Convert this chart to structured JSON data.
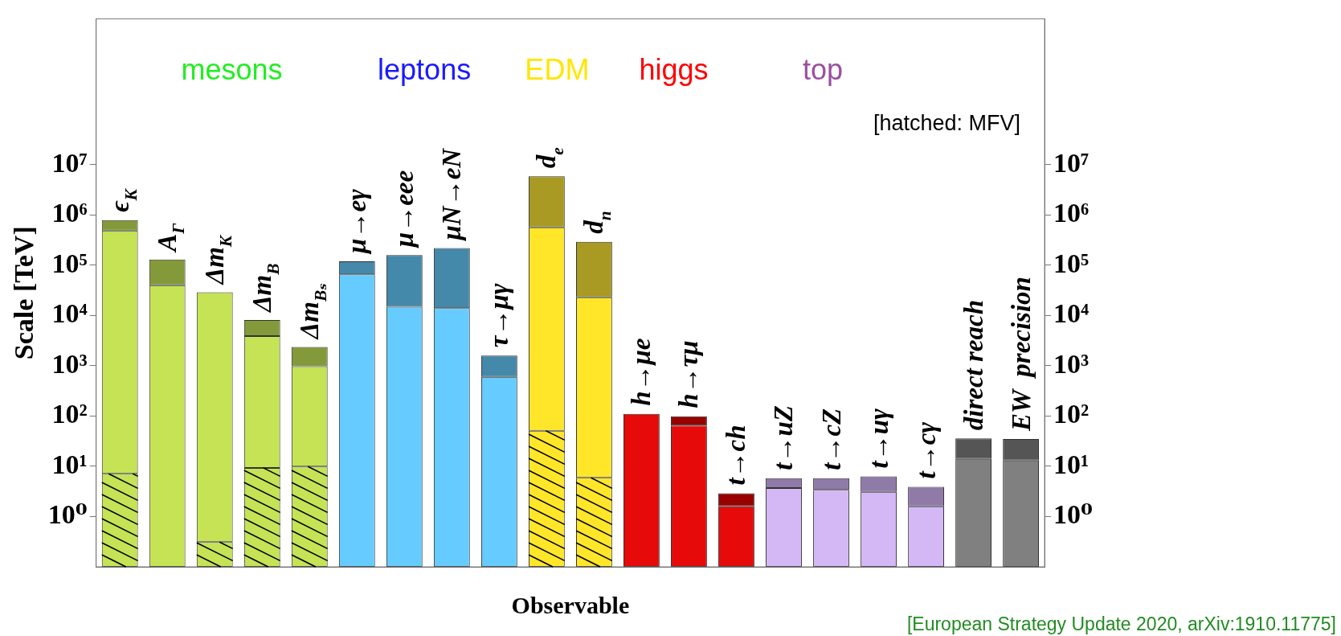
{
  "chart_data": {
    "type": "bar",
    "stacked": true,
    "categories": [
      "ϵ$_{K}$",
      "A$_{Γ}$",
      "Δm$_{K}$",
      "Δm$_{B}$",
      "Δm$_{Bₛ}$",
      "μ→eγ",
      "μ→eee",
      "μN→eN",
      "τ→μγ",
      "d$_{e}$",
      "d$_{n}$",
      "h→μe",
      "h→τμ",
      "t→ch",
      "t→uZ",
      "t→cZ",
      "t→uγ",
      "t→cγ",
      "direct reach",
      "EW  precision"
    ],
    "series": [
      {
        "values": [
          7.1,
          null,
          0.31,
          9.3,
          9.9,
          null,
          null,
          null,
          null,
          51,
          5.9,
          null,
          null,
          null,
          null,
          null,
          null,
          null,
          null,
          null
        ],
        "colors": [
          "#c5e355",
          "#c5e355",
          "#c5e355",
          "#c5e355",
          "#c5e355",
          "#66ccff",
          "#66ccff",
          "#66ccff",
          "#66ccff",
          "#ffe629",
          "#ffe629",
          "#e60a0a",
          "#e60a0a",
          "#e60a0a",
          "#d4b8f5",
          "#d4b8f5",
          "#d4b8f5",
          "#d4b8f5",
          "#808080",
          "#808080"
        ]
      },
      {
        "values": [
          490000,
          40000,
          29000,
          3900,
          970,
          66000,
          15000,
          14000,
          600,
          570000,
          23000,
          110,
          65,
          1.6,
          3.7,
          3.4,
          3.1,
          1.6,
          14,
          13
        ],
        "colors": [
          "#c5e355",
          "#c5e355",
          "#c5e355",
          "#c5e355",
          "#c5e355",
          "#66ccff",
          "#66ccff",
          "#66ccff",
          "#66ccff",
          "#ffe629",
          "#ffe629",
          "#e60a0a",
          "#e60a0a",
          "#e60a0a",
          "#d4b8f5",
          "#d4b8f5",
          "#d4b8f5",
          "#d4b8f5",
          "#808080",
          "#808080"
        ]
      },
      {
        "values": [
          300000,
          90000,
          null,
          4200,
          1400,
          54000,
          145000,
          206000,
          1000,
          5300000,
          270000,
          null,
          34,
          1.3,
          2.1,
          2.4,
          3.2,
          2.3,
          22,
          22
        ],
        "colors": [
          "#849a3a",
          "#849a3a",
          "#849a3a",
          "#849a3a",
          "#849a3a",
          "#4488aa",
          "#4488aa",
          "#4488aa",
          "#4488aa",
          "#a89a22",
          "#a89a22",
          "#990000",
          "#990000",
          "#990000",
          "#8f7aa8",
          "#8f7aa8",
          "#8f7aa8",
          "#8f7aa8",
          "#555555",
          "#555555"
        ]
      }
    ],
    "ylim": [
      0.1,
      8000000000
    ],
    "yticks": [
      {
        "value": 1,
        "label": "10⁰"
      },
      {
        "value": 10,
        "label": "10¹"
      },
      {
        "value": 100,
        "label": "10²"
      },
      {
        "value": 1000,
        "label": "10³"
      },
      {
        "value": 10000,
        "label": "10⁴"
      },
      {
        "value": 100000,
        "label": "10⁵"
      },
      {
        "value": 1000000,
        "label": "10⁶"
      },
      {
        "value": 10000000,
        "label": "10⁷"
      }
    ],
    "log": "y",
    "ylabel": "Scale [TeV]",
    "xlabel": "Observable",
    "annotations": [
      "mesons",
      "leptons",
      "EDM",
      "higgs",
      "top",
      "[hatched: MFV]",
      "[European Strategy Update 2020, arXiv:1910.11775]"
    ]
  }
}
